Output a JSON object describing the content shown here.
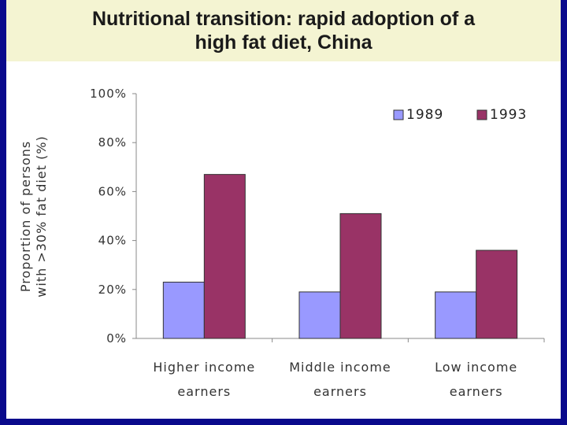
{
  "chart_data": {
    "type": "bar",
    "title": "Nutritional transition: rapid adoption of a high fat diet, China",
    "title_lines": [
      "Nutritional transition: rapid adoption of a",
      "high fat diet, China"
    ],
    "categories": [
      [
        "Higher income",
        "earners"
      ],
      [
        "Middle income",
        "earners"
      ],
      [
        "Low income",
        "earners"
      ]
    ],
    "series": [
      {
        "name": "1989",
        "color": "#9999ff",
        "values": [
          23,
          19,
          19
        ]
      },
      {
        "name": "1993",
        "color": "#993366",
        "values": [
          67,
          51,
          36
        ]
      }
    ],
    "ylabel_lines": [
      "Proportion of persons",
      "with >30% fat diet (%)"
    ],
    "ylim": [
      0,
      100
    ],
    "yticks": [
      0,
      20,
      40,
      60,
      80,
      100
    ],
    "ytick_labels": [
      "0%",
      "20%",
      "40%",
      "60%",
      "80%",
      "100%"
    ],
    "legend_position": "top-right",
    "grid": false
  },
  "colors": {
    "border": "#0a0a8c",
    "title_band": "#f4f4d2"
  }
}
